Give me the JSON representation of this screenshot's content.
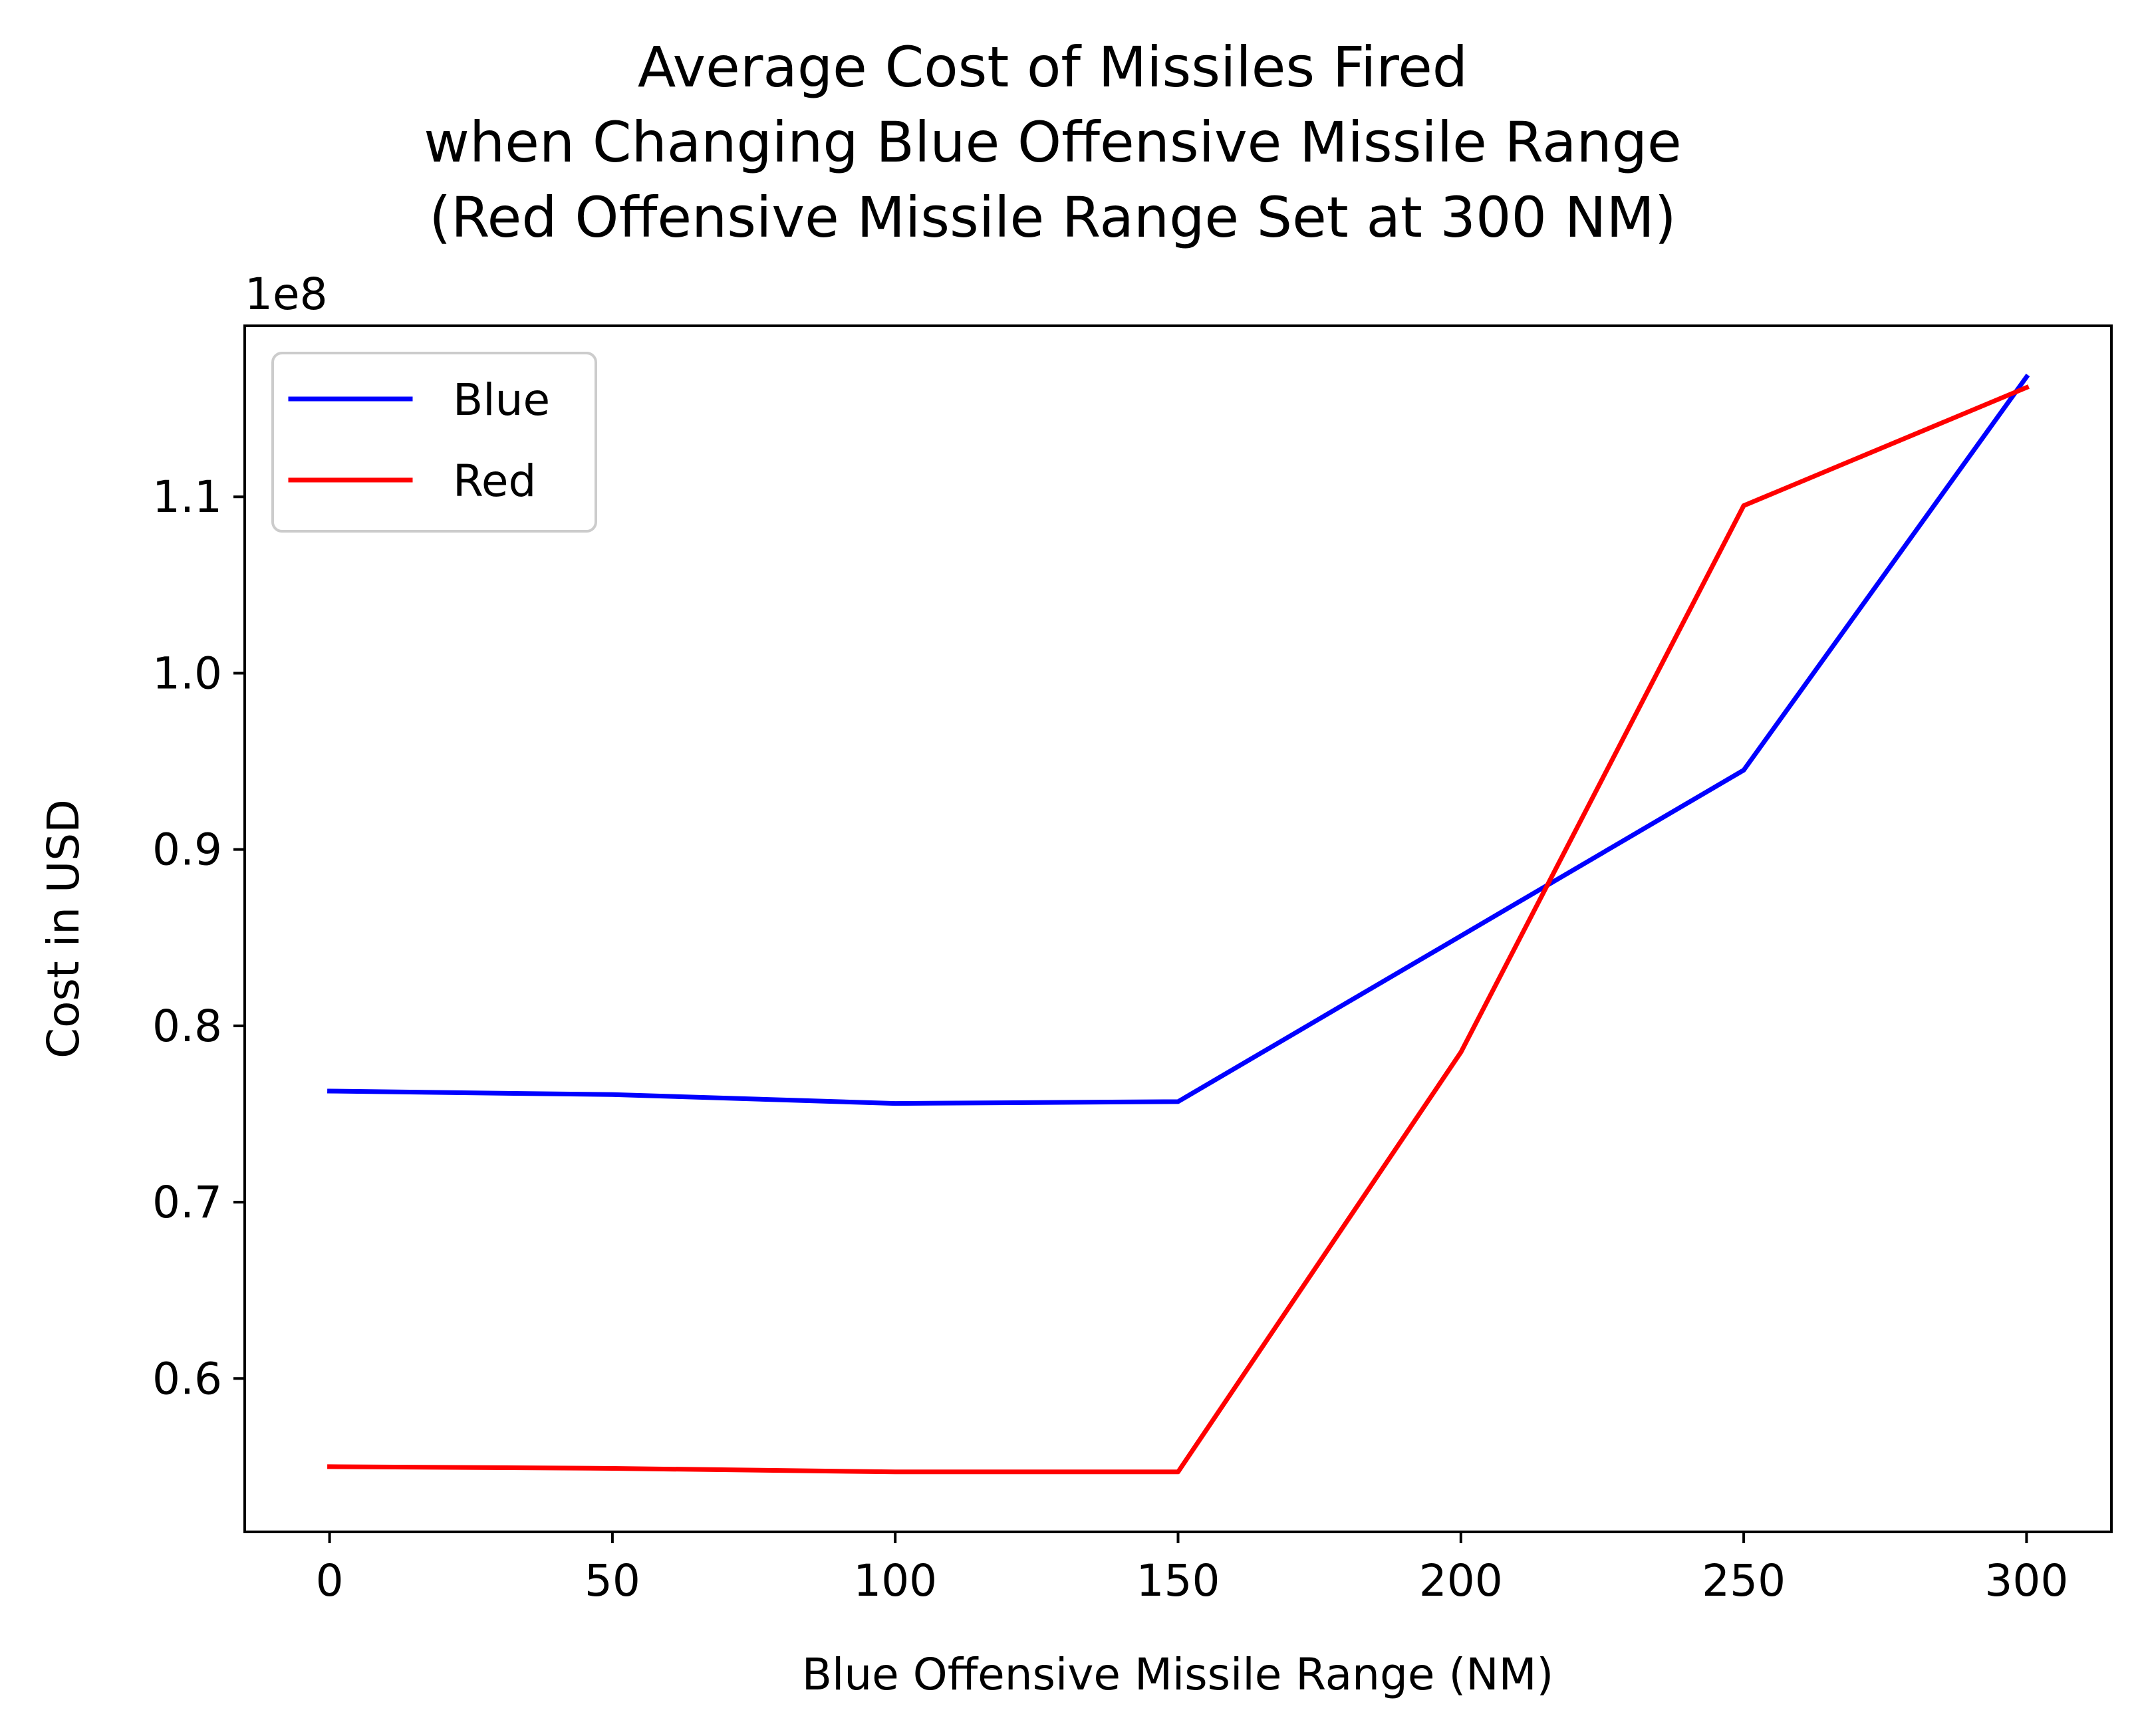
{
  "chart_data": {
    "type": "line",
    "title_lines": [
      "Average Cost of Missiles Fired",
      "when Changing Blue Offensive Missile Range",
      "(Red Offensive Missile Range Set at 300 NM)"
    ],
    "xlabel": "Blue Offensive Missile Range (NM)",
    "ylabel": "Cost in USD",
    "y_offset_label": "1e8",
    "x": [
      0,
      50,
      100,
      150,
      200,
      250,
      300
    ],
    "xlim": [
      -15,
      315
    ],
    "ylim": [
      0.513,
      1.197
    ],
    "x_ticks": [
      0,
      50,
      100,
      150,
      200,
      250,
      300
    ],
    "x_tick_labels": [
      "0",
      "50",
      "100",
      "150",
      "200",
      "250",
      "300"
    ],
    "y_ticks": [
      0.6,
      0.7,
      0.8,
      0.9,
      1.0,
      1.1
    ],
    "y_tick_labels": [
      "0.6",
      "0.7",
      "0.8",
      "0.9",
      "1.0",
      "1.1"
    ],
    "grid": false,
    "legend_position": "top-left",
    "series": [
      {
        "name": "Blue",
        "color": "#0000ff",
        "values": [
          0.763,
          0.761,
          0.756,
          0.757,
          0.851,
          0.945,
          1.168
        ]
      },
      {
        "name": "Red",
        "color": "#ff0000",
        "values": [
          0.55,
          0.549,
          0.547,
          0.547,
          0.785,
          1.095,
          1.162
        ]
      }
    ]
  }
}
